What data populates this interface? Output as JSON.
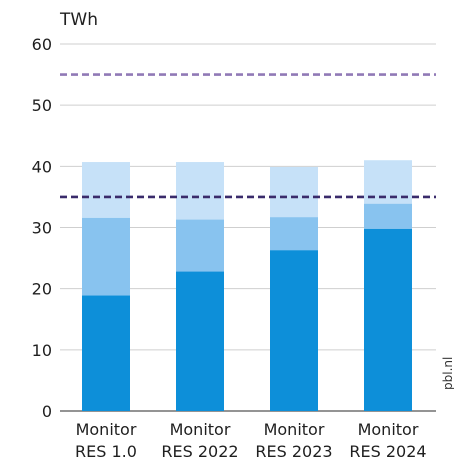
{
  "unit_label": "TWh",
  "watermark": "pbl.nl",
  "chart_data": {
    "type": "bar",
    "stacked": true,
    "categories": [
      [
        "Monitor",
        "RES 1.0"
      ],
      [
        "Monitor",
        "RES 2022"
      ],
      [
        "Monitor",
        "RES 2023"
      ],
      [
        "Monitor",
        "RES 2024"
      ]
    ],
    "series": [
      {
        "values": [
          18.9,
          22.8,
          26.3,
          29.8
        ],
        "color": "#0d8fd9"
      },
      {
        "values": [
          12.7,
          8.5,
          5.4,
          4.1
        ],
        "color": "#88c3ef"
      },
      {
        "values": [
          9.1,
          9.4,
          8.2,
          7.1
        ],
        "color": "#c6e1f8"
      }
    ],
    "reference_lines": [
      {
        "value": 55,
        "color": "#9079b6"
      },
      {
        "value": 35,
        "color": "#3a2b6b"
      }
    ],
    "yticks": [
      0,
      10,
      20,
      30,
      40,
      50,
      60
    ],
    "ylim": [
      0,
      60
    ],
    "grid": true,
    "legend": "none"
  }
}
